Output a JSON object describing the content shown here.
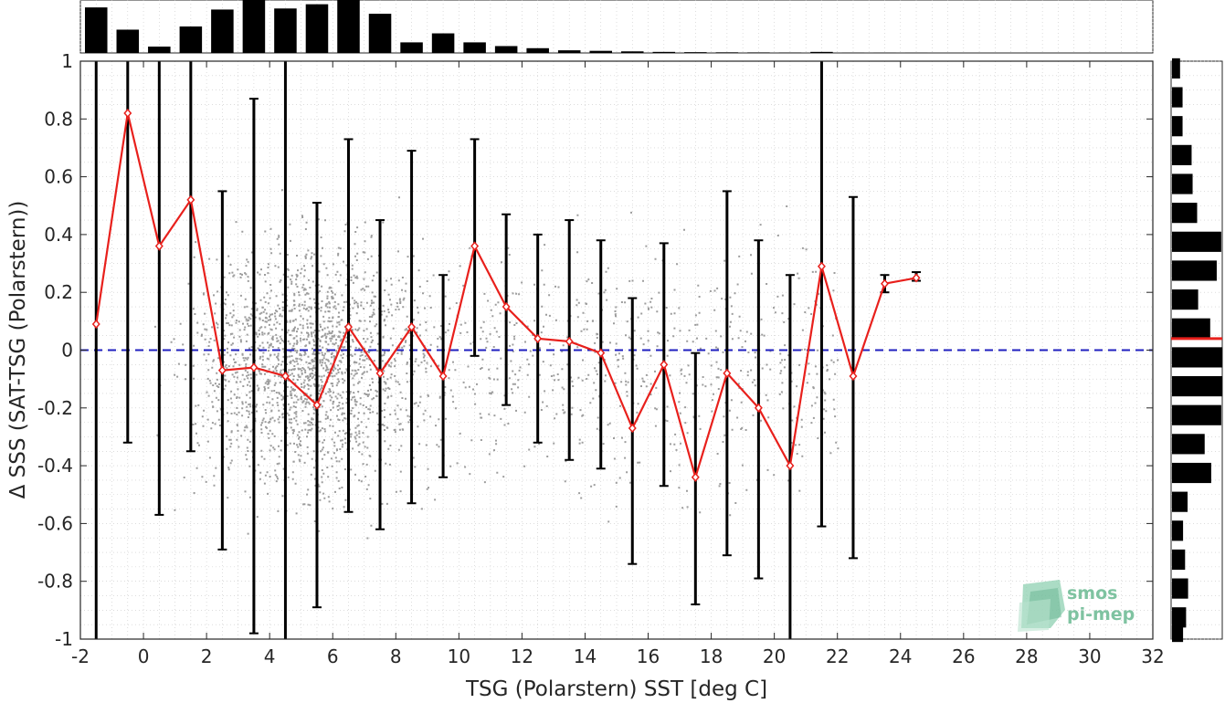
{
  "chart_data": {
    "type": "scatter",
    "xlabel": "TSG (Polarstern) SST [deg C]",
    "ylabel": "Δ SSS (SAT-TSG (Polarstern))",
    "xlim": [
      -2,
      32
    ],
    "ylim": [
      -1,
      1
    ],
    "xticks": [
      "-2",
      "0",
      "2",
      "4",
      "6",
      "8",
      "10",
      "12",
      "14",
      "16",
      "18",
      "20",
      "22",
      "24",
      "26",
      "28",
      "30",
      "32"
    ],
    "yticks": [
      "-1",
      "-0.8",
      "-0.6",
      "-0.4",
      "-0.2",
      "0",
      "0.2",
      "0.4",
      "0.6",
      "0.8",
      "1"
    ],
    "grid": "minor dotted",
    "reference_line": {
      "y": 0,
      "style": "dashed",
      "color": "#1f1fbf"
    },
    "mean_series": {
      "color": "#e8201c",
      "x": [
        -1.5,
        -0.5,
        0.5,
        1.5,
        2.5,
        3.5,
        4.5,
        5.5,
        6.5,
        7.5,
        8.5,
        9.5,
        10.5,
        11.5,
        12.5,
        13.5,
        14.5,
        15.5,
        16.5,
        17.5,
        18.5,
        19.5,
        20.5,
        21.5,
        22.5,
        23.5,
        24.5
      ],
      "y": [
        0.09,
        0.82,
        0.36,
        0.52,
        -0.07,
        -0.06,
        -0.09,
        -0.19,
        0.08,
        -0.08,
        0.08,
        -0.09,
        0.36,
        0.15,
        0.04,
        0.03,
        -0.01,
        -0.27,
        -0.05,
        -0.44,
        -0.08,
        -0.2,
        -0.4,
        0.29,
        -0.09,
        0.23,
        0.25
      ],
      "err_low": [
        -1.0,
        -0.32,
        -0.57,
        -0.35,
        -0.69,
        -0.98,
        -1.0,
        -0.89,
        -0.56,
        -0.62,
        -0.53,
        -0.44,
        -0.02,
        -0.19,
        -0.32,
        -0.38,
        -0.41,
        -0.74,
        -0.47,
        -0.88,
        -0.71,
        -0.79,
        -1.0,
        -0.61,
        -0.72,
        0.2,
        0.24
      ],
      "err_high": [
        1.0,
        1.0,
        1.0,
        1.0,
        0.55,
        0.87,
        1.0,
        0.51,
        0.73,
        0.45,
        0.69,
        0.26,
        0.73,
        0.47,
        0.4,
        0.45,
        0.38,
        0.18,
        0.37,
        -0.01,
        0.55,
        0.38,
        0.26,
        1.0,
        0.53,
        0.26,
        0.27
      ]
    },
    "sst_histogram": {
      "bin_centers": [
        -1.5,
        -0.5,
        0.5,
        1.5,
        2.5,
        3.5,
        4.5,
        5.5,
        6.5,
        7.5,
        8.5,
        9.5,
        10.5,
        11.5,
        12.5,
        13.5,
        14.5,
        15.5,
        16.5,
        17.5,
        18.5,
        19.5,
        20.5,
        21.5,
        22.5,
        23.5,
        24.5
      ],
      "relative_counts": [
        0.86,
        0.44,
        0.12,
        0.5,
        0.82,
        1.0,
        0.84,
        0.92,
        1.0,
        0.74,
        0.2,
        0.37,
        0.2,
        0.13,
        0.09,
        0.05,
        0.04,
        0.03,
        0.02,
        0.015,
        0.012,
        0.01,
        0.008,
        0.02,
        0.005,
        0.004,
        0.003
      ]
    },
    "dsss_histogram": {
      "bin_centers": [
        0.975,
        0.925,
        0.875,
        0.825,
        0.775,
        0.725,
        0.675,
        0.625,
        0.575,
        0.525,
        0.475,
        0.425,
        0.375,
        0.325,
        0.275,
        0.225,
        0.175,
        0.125,
        0.075,
        0.025,
        -0.025,
        -0.075,
        -0.125,
        -0.175,
        -0.225,
        -0.275,
        -0.325,
        -0.375,
        -0.425,
        -0.475,
        -0.525,
        -0.575,
        -0.625,
        -0.675,
        -0.725,
        -0.775,
        -0.825,
        -0.875,
        -0.925,
        -0.975
      ],
      "relative_counts": [
        0.16,
        0,
        0.21,
        0,
        0.21,
        0,
        0.39,
        0,
        0.41,
        0,
        0.5,
        0,
        0.98,
        0,
        0.89,
        0,
        0.52,
        0,
        0.76,
        0,
        1.0,
        0,
        1.0,
        0,
        0.98,
        0,
        0.65,
        0,
        0.78,
        0,
        0.31,
        0,
        0.22,
        0,
        0.26,
        0,
        0.32,
        0,
        0.28,
        0.22
      ],
      "mean_marker": {
        "y": 0.04,
        "color": "#e8201c"
      }
    }
  },
  "logo": {
    "line1": "smos",
    "line2": "pi-mep"
  }
}
